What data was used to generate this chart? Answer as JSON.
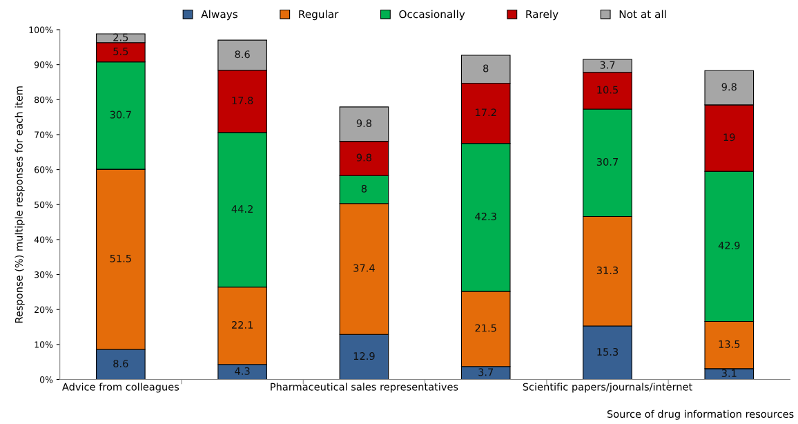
{
  "chart_data": {
    "type": "bar",
    "stacked": true,
    "xlabel": "Source of drug information resources",
    "ylabel": "Response (%) multiple responses for each item",
    "categories": [
      "Advice from colleagues",
      null,
      "Pharmaceutical sales representatives",
      null,
      "Scientific papers/journals/internet",
      null
    ],
    "series": [
      {
        "name": "Always",
        "color": "#376092",
        "values": [
          8.6,
          4.3,
          12.9,
          3.7,
          15.3,
          3.1
        ]
      },
      {
        "name": "Regular",
        "color": "#e46c0a",
        "values": [
          51.5,
          22.1,
          37.4,
          21.5,
          31.3,
          13.5
        ]
      },
      {
        "name": "Occasionally",
        "color": "#00b050",
        "values": [
          30.7,
          44.2,
          8,
          42.3,
          30.7,
          42.9
        ]
      },
      {
        "name": "Rarely",
        "color": "#c00000",
        "values": [
          5.5,
          17.8,
          9.8,
          17.2,
          10.5,
          19
        ]
      },
      {
        "name": "Not at all",
        "color": "#a6a6a6",
        "values": [
          2.5,
          8.6,
          9.8,
          8,
          3.7,
          9.8
        ]
      }
    ],
    "ylim": [
      0,
      100
    ],
    "yticks": [
      {
        "value": 0,
        "label": "0%"
      },
      {
        "value": 10,
        "label": "10%"
      },
      {
        "value": 20,
        "label": "20%"
      },
      {
        "value": 30,
        "label": "30%"
      },
      {
        "value": 40,
        "label": "40%"
      },
      {
        "value": 50,
        "label": "50%"
      },
      {
        "value": 60,
        "label": "60%"
      },
      {
        "value": 70,
        "label": "70%"
      },
      {
        "value": 80,
        "label": "80%"
      },
      {
        "value": 90,
        "label": "90%"
      },
      {
        "value": 100,
        "label": "100%"
      }
    ],
    "data_labels": true,
    "legend": "top",
    "grid": false
  }
}
